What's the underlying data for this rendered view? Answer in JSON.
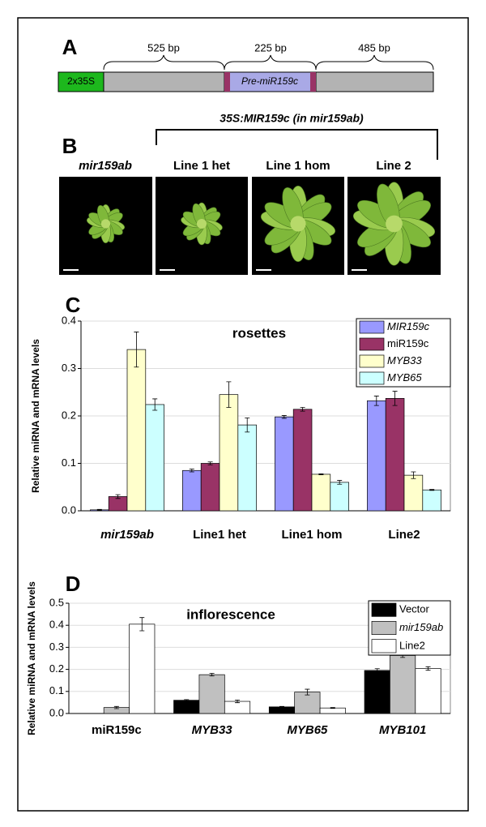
{
  "panel_a": {
    "label": "A",
    "promoter": "2x35S",
    "precursor": "Pre-miR159c",
    "lengths": [
      "525 bp",
      "225 bp",
      "485 bp"
    ]
  },
  "panel_b": {
    "label": "B",
    "construct": "35S:MIR159c (in mir159ab)",
    "samples": [
      "mir159ab",
      "Line 1 het",
      "Line 1 hom",
      "Line 2"
    ]
  },
  "chart_data": [
    {
      "panel": "C",
      "type": "bar",
      "title": "rosettes",
      "y_label": "Relative miRNA and mRNA levels",
      "categories": [
        "mir159ab",
        "Line1 het",
        "Line1 hom",
        "Line2"
      ],
      "series": [
        {
          "name": "MIR159c",
          "color": "#9999ff",
          "values": [
            0.002,
            0.085,
            0.198,
            0.232
          ],
          "errors": [
            0.001,
            0.003,
            0.003,
            0.01
          ]
        },
        {
          "name": "miR159c",
          "color": "#993366",
          "values": [
            0.03,
            0.1,
            0.214,
            0.237
          ],
          "errors": [
            0.004,
            0.003,
            0.004,
            0.015
          ]
        },
        {
          "name": "MYB33",
          "color": "#ffffcc",
          "values": [
            0.34,
            0.245,
            0.077,
            0.075
          ],
          "errors": [
            0.037,
            0.027,
            0.001,
            0.007
          ]
        },
        {
          "name": "MYB65",
          "color": "#ccffff",
          "values": [
            0.224,
            0.181,
            0.06,
            0.044
          ],
          "errors": [
            0.012,
            0.015,
            0.004,
            0.001
          ]
        }
      ],
      "ylim": [
        0,
        0.4
      ],
      "yticks": [
        {
          "value": 0,
          "label": "0.0"
        },
        0.1,
        0.2,
        0.3,
        0.4
      ],
      "grid": true,
      "legend": "upper right"
    },
    {
      "panel": "D",
      "type": "bar",
      "title": "inflorescence",
      "y_label": "Relative miRNA and mRNA levels",
      "categories": [
        "miR159c",
        "MYB33",
        "MYB65",
        "MYB101"
      ],
      "series": [
        {
          "name": "Vector",
          "color": "#000000",
          "values": [
            0,
            0.06,
            0.03,
            0.195
          ],
          "errors": [
            0,
            0.003,
            0.002,
            0.008
          ]
        },
        {
          "name": "mir159ab",
          "color": "#c0c0c0",
          "values": [
            0.027,
            0.176,
            0.097,
            0.263
          ],
          "errors": [
            0.005,
            0.006,
            0.013,
            0.009
          ]
        },
        {
          "name": "Line2",
          "color": "#ffffff",
          "values": [
            0.405,
            0.055,
            0.025,
            0.204
          ],
          "errors": [
            0.03,
            0.006,
            0.002,
            0.008
          ]
        }
      ],
      "ylim": [
        0,
        0.5
      ],
      "yticks": [
        {
          "value": 0,
          "label": "0.0"
        },
        0.1,
        0.2,
        0.3,
        0.4,
        0.5
      ],
      "grid": true,
      "legend": "upper right"
    }
  ]
}
